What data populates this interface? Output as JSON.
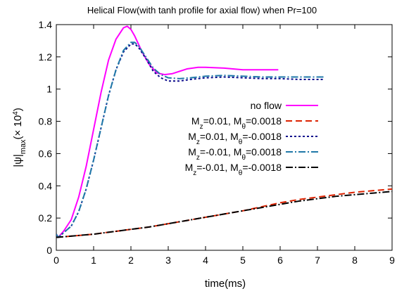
{
  "chart_data": {
    "type": "line",
    "title": "Helical Flow(with tanh profile for axial flow) when Pr=100",
    "xlabel": "time(ms)",
    "ylabel": {
      "prefix": "|ψ|",
      "sub": "max",
      "mid": "(× 10",
      "sup": "4",
      "suffix": ")"
    },
    "xlim": [
      0,
      9
    ],
    "ylim": [
      0,
      1.4
    ],
    "xticks": [
      0,
      1,
      2,
      3,
      4,
      5,
      6,
      7,
      8,
      9
    ],
    "yticks": [
      0,
      0.2,
      0.4,
      0.6,
      0.8,
      1,
      1.2,
      1.4
    ],
    "grid": false,
    "legend_position": "right",
    "series": [
      {
        "name": {
          "parts": [
            {
              "t": "no flow"
            }
          ]
        },
        "color": "#ff00ff",
        "dash": "solid",
        "x": [
          0,
          0.05,
          0.2,
          0.4,
          0.6,
          0.8,
          1.0,
          1.2,
          1.4,
          1.6,
          1.8,
          1.9,
          2.0,
          2.1,
          2.3,
          2.5,
          2.7,
          2.9,
          3.1,
          3.3,
          3.5,
          3.8,
          4.0,
          4.5,
          5.0,
          5.5,
          5.95
        ],
        "y": [
          0.1,
          0.08,
          0.12,
          0.19,
          0.33,
          0.52,
          0.75,
          0.98,
          1.18,
          1.31,
          1.38,
          1.39,
          1.37,
          1.33,
          1.23,
          1.15,
          1.1,
          1.09,
          1.095,
          1.11,
          1.125,
          1.135,
          1.135,
          1.13,
          1.12,
          1.12,
          1.12
        ]
      },
      {
        "name": {
          "parts": [
            {
              "t": "M"
            },
            {
              "t": "z",
              "sub": true
            },
            {
              "t": "=0.01, M"
            },
            {
              "t": "θ",
              "sub": true
            },
            {
              "t": "=0.0018"
            }
          ]
        },
        "color": "#dd2200",
        "dash": "9,5",
        "x": [
          0,
          0.5,
          1,
          1.5,
          2,
          2.5,
          3,
          3.5,
          4,
          4.5,
          5,
          5.5,
          6,
          6.5,
          7,
          7.5,
          8,
          8.5,
          9
        ],
        "y": [
          0.08,
          0.09,
          0.1,
          0.115,
          0.13,
          0.145,
          0.165,
          0.185,
          0.205,
          0.225,
          0.245,
          0.27,
          0.295,
          0.315,
          0.33,
          0.345,
          0.36,
          0.37,
          0.38
        ]
      },
      {
        "name": {
          "parts": [
            {
              "t": "M"
            },
            {
              "t": "z",
              "sub": true
            },
            {
              "t": "=0.01, M"
            },
            {
              "t": "θ",
              "sub": true
            },
            {
              "t": "=-0.0018"
            }
          ]
        },
        "color": "#0a0a8c",
        "dash": "3,3",
        "x": [
          0,
          0.05,
          0.2,
          0.4,
          0.6,
          0.8,
          1.0,
          1.2,
          1.4,
          1.6,
          1.8,
          2.0,
          2.1,
          2.2,
          2.4,
          2.6,
          2.8,
          3.0,
          3.3,
          3.6,
          4.0,
          4.5,
          5.0,
          5.5,
          6.0,
          6.5,
          7.0,
          7.2
        ],
        "y": [
          0.1,
          0.08,
          0.11,
          0.15,
          0.24,
          0.38,
          0.56,
          0.76,
          0.96,
          1.12,
          1.23,
          1.28,
          1.28,
          1.26,
          1.19,
          1.11,
          1.07,
          1.05,
          1.05,
          1.06,
          1.07,
          1.075,
          1.07,
          1.065,
          1.065,
          1.06,
          1.06,
          1.06
        ]
      },
      {
        "name": {
          "parts": [
            {
              "t": "M"
            },
            {
              "t": "z",
              "sub": true
            },
            {
              "t": "=-0.01, M"
            },
            {
              "t": "θ",
              "sub": true
            },
            {
              "t": "=0.0018"
            }
          ]
        },
        "color": "#1f78a8",
        "dash": "10,3,2,3",
        "x": [
          0,
          0.05,
          0.2,
          0.4,
          0.6,
          0.8,
          1.0,
          1.2,
          1.4,
          1.6,
          1.8,
          2.0,
          2.1,
          2.2,
          2.4,
          2.6,
          2.8,
          3.0,
          3.3,
          3.6,
          4.0,
          4.5,
          5.0,
          5.5,
          6.0,
          6.5,
          7.0,
          7.2
        ],
        "y": [
          0.1,
          0.08,
          0.11,
          0.15,
          0.24,
          0.38,
          0.56,
          0.76,
          0.96,
          1.12,
          1.24,
          1.29,
          1.29,
          1.27,
          1.2,
          1.13,
          1.09,
          1.07,
          1.065,
          1.07,
          1.08,
          1.085,
          1.08,
          1.075,
          1.075,
          1.075,
          1.075,
          1.075
        ]
      },
      {
        "name": {
          "parts": [
            {
              "t": "M"
            },
            {
              "t": "z",
              "sub": true
            },
            {
              "t": "=-0.01, M"
            },
            {
              "t": "θ",
              "sub": true
            },
            {
              "t": "=-0.0018"
            }
          ]
        },
        "color": "#000000",
        "dash": "10,3,2,3",
        "x": [
          0,
          0.5,
          1,
          1.5,
          2,
          2.5,
          3,
          3.5,
          4,
          4.5,
          5,
          5.5,
          6,
          6.5,
          7,
          7.5,
          8,
          8.5,
          9
        ],
        "y": [
          0.08,
          0.09,
          0.1,
          0.115,
          0.13,
          0.145,
          0.165,
          0.185,
          0.205,
          0.225,
          0.245,
          0.265,
          0.285,
          0.305,
          0.32,
          0.335,
          0.345,
          0.355,
          0.365
        ]
      }
    ]
  }
}
